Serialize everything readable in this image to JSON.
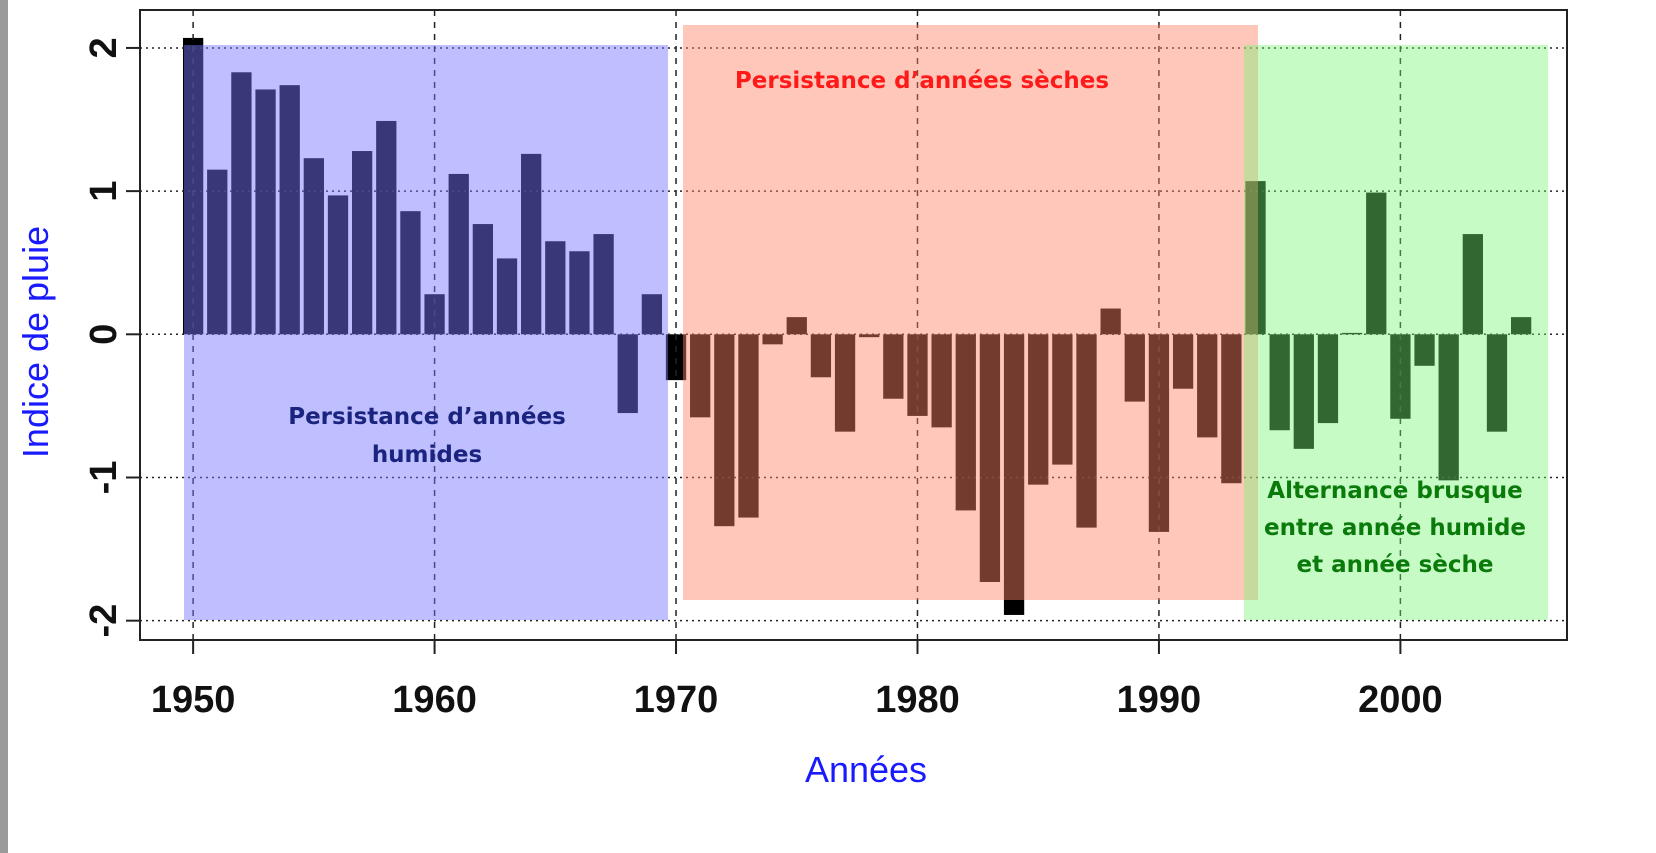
{
  "chart_data": {
    "type": "bar",
    "x_label": "Années",
    "y_label": "Indice de pluie",
    "annotations": [
      "Persistance d’années sèches",
      "Persistance d’années",
      "humides",
      "Alternance brusque",
      "entre année humide",
      "et année sèche"
    ],
    "x": [
      1950,
      1951,
      1952,
      1953,
      1954,
      1955,
      1956,
      1957,
      1958,
      1959,
      1960,
      1961,
      1962,
      1963,
      1964,
      1965,
      1966,
      1967,
      1968,
      1969,
      1970,
      1971,
      1972,
      1973,
      1974,
      1975,
      1976,
      1977,
      1978,
      1979,
      1980,
      1981,
      1982,
      1983,
      1984,
      1985,
      1986,
      1987,
      1988,
      1989,
      1990,
      1991,
      1992,
      1993,
      1994,
      1995,
      1996,
      1997,
      1998,
      1999,
      2000,
      2001,
      2002,
      2003,
      2004,
      2005
    ],
    "values": [
      2.07,
      1.15,
      1.83,
      1.71,
      1.74,
      1.23,
      0.97,
      1.28,
      1.49,
      0.86,
      0.28,
      1.12,
      0.77,
      0.53,
      1.26,
      0.65,
      0.58,
      0.7,
      -0.55,
      0.28,
      -0.32,
      -0.58,
      -1.34,
      -1.28,
      -0.07,
      0.12,
      -0.3,
      -0.68,
      -0.02,
      -0.45,
      -0.57,
      -0.65,
      -1.23,
      -1.73,
      -1.96,
      -1.05,
      -0.91,
      -1.35,
      0.18,
      -0.47,
      -1.38,
      -0.38,
      -0.72,
      -1.04,
      1.07,
      -0.67,
      -0.8,
      -0.62,
      0.01,
      0.99,
      -0.59,
      -0.22,
      -1.02,
      0.7,
      -0.68,
      0.12
    ],
    "color": "#000000",
    "xlim": [
      1947.8,
      2006.9
    ],
    "xticks": [
      1950,
      1960,
      1970,
      1980,
      1990,
      2000
    ],
    "ylim": [
      -2.135,
      2.265
    ],
    "yticks": [
      -2,
      -1,
      0,
      1,
      2
    ],
    "grid": true
  }
}
